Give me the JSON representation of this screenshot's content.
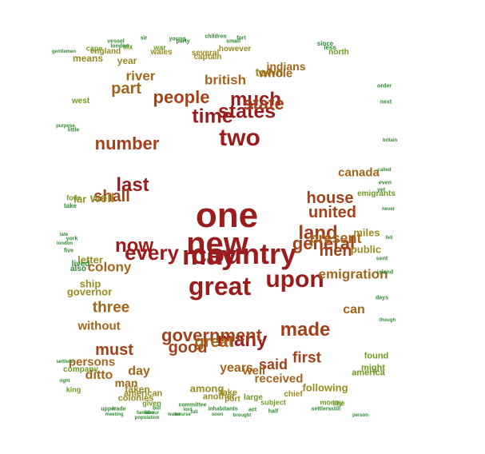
{
  "colors": {
    "c1": "#9b1c1c",
    "c2": "#a3421a",
    "c3": "#a5641c",
    "c4": "#9a8a22",
    "c5": "#6e9a22",
    "c6": "#2e8b2e"
  },
  "words": [
    {
      "text": "one",
      "color": "c1"
    },
    {
      "text": "new",
      "color": "c1"
    },
    {
      "text": "country",
      "color": "c1"
    },
    {
      "text": "may",
      "color": "c1"
    },
    {
      "text": "great",
      "color": "c1"
    },
    {
      "text": "upon",
      "color": "c1"
    },
    {
      "text": "two",
      "color": "c1"
    },
    {
      "text": "time",
      "color": "c1"
    },
    {
      "text": "states",
      "color": "c1"
    },
    {
      "text": "much",
      "color": "c1"
    },
    {
      "text": "state",
      "color": "c2"
    },
    {
      "text": "every",
      "color": "c1"
    },
    {
      "text": "now",
      "color": "c1"
    },
    {
      "text": "last",
      "color": "c1"
    },
    {
      "text": "made",
      "color": "c2"
    },
    {
      "text": "many",
      "color": "c1"
    },
    {
      "text": "government",
      "color": "c2"
    },
    {
      "text": "good",
      "color": "c2"
    },
    {
      "text": "great",
      "color": "c3"
    },
    {
      "text": "land",
      "color": "c2"
    },
    {
      "text": "general",
      "color": "c2"
    },
    {
      "text": "present",
      "color": "c3"
    },
    {
      "text": "men",
      "color": "c2"
    },
    {
      "text": "united",
      "color": "c2"
    },
    {
      "text": "house",
      "color": "c2"
    },
    {
      "text": "emigration",
      "color": "c3"
    },
    {
      "text": "number",
      "color": "c2"
    },
    {
      "text": "people",
      "color": "c2"
    },
    {
      "text": "part",
      "color": "c3"
    },
    {
      "text": "river",
      "color": "c3"
    },
    {
      "text": "british",
      "color": "c3"
    },
    {
      "text": "town",
      "color": "c4"
    },
    {
      "text": "whole",
      "color": "c3"
    },
    {
      "text": "indians",
      "color": "c3"
    },
    {
      "text": "shall",
      "color": "c2"
    },
    {
      "text": "far",
      "color": "c4"
    },
    {
      "text": "well",
      "color": "c4"
    },
    {
      "text": "colony",
      "color": "c3"
    },
    {
      "text": "letter",
      "color": "c4"
    },
    {
      "text": "three",
      "color": "c3"
    },
    {
      "text": "without",
      "color": "c3"
    },
    {
      "text": "must",
      "color": "c2"
    },
    {
      "text": "persons",
      "color": "c3"
    },
    {
      "text": "ditto",
      "color": "c3"
    },
    {
      "text": "day",
      "color": "c3"
    },
    {
      "text": "man",
      "color": "c3"
    },
    {
      "text": "first",
      "color": "c2"
    },
    {
      "text": "said",
      "color": "c2"
    },
    {
      "text": "years",
      "color": "c3"
    },
    {
      "text": "well",
      "color": "c3"
    },
    {
      "text": "received",
      "color": "c3"
    },
    {
      "text": "following",
      "color": "c4"
    },
    {
      "text": "can",
      "color": "c3"
    },
    {
      "text": "canada",
      "color": "c3"
    },
    {
      "text": "miles",
      "color": "c4"
    },
    {
      "text": "public",
      "color": "c4"
    },
    {
      "text": "governor",
      "color": "c4"
    },
    {
      "text": "ship",
      "color": "c4"
    },
    {
      "text": "among",
      "color": "c4"
    },
    {
      "text": "found",
      "color": "c5"
    },
    {
      "text": "might",
      "color": "c5"
    },
    {
      "text": "america",
      "color": "c5"
    },
    {
      "text": "emigrants",
      "color": "c5"
    },
    {
      "text": "year",
      "color": "c4"
    },
    {
      "text": "means",
      "color": "c4"
    },
    {
      "text": "west",
      "color": "c5"
    },
    {
      "text": "north",
      "color": "c5"
    },
    {
      "text": "england",
      "color": "c4"
    },
    {
      "text": "wales",
      "color": "c4"
    },
    {
      "text": "several",
      "color": "c4"
    },
    {
      "text": "captain",
      "color": "c4"
    },
    {
      "text": "however",
      "color": "c4"
    },
    {
      "text": "taken",
      "color": "c4"
    },
    {
      "text": "american",
      "color": "c4"
    },
    {
      "text": "colonies",
      "color": "c4"
    },
    {
      "text": "company",
      "color": "c5"
    },
    {
      "text": "king",
      "color": "c5"
    },
    {
      "text": "take",
      "color": "c4"
    },
    {
      "text": "another",
      "color": "c4"
    },
    {
      "text": "port",
      "color": "c4"
    },
    {
      "text": "large",
      "color": "c5"
    },
    {
      "text": "chief",
      "color": "c4"
    },
    {
      "text": "subject",
      "color": "c5"
    },
    {
      "text": "money",
      "color": "c5"
    },
    {
      "text": "like",
      "color": "c5"
    },
    {
      "text": "given",
      "color": "c5"
    },
    {
      "text": "cape",
      "color": "c5"
    },
    {
      "text": "six",
      "color": "c5"
    },
    {
      "text": "vessel",
      "color": "c6"
    },
    {
      "text": "london",
      "color": "c6"
    },
    {
      "text": "sir",
      "color": "c6"
    },
    {
      "text": "war",
      "color": "c5"
    },
    {
      "text": "young",
      "color": "c6"
    },
    {
      "text": "party",
      "color": "c6"
    },
    {
      "text": "children",
      "color": "c6"
    },
    {
      "text": "small",
      "color": "c6"
    },
    {
      "text": "fort",
      "color": "c6"
    },
    {
      "text": "since",
      "color": "c6"
    },
    {
      "text": "less",
      "color": "c6"
    },
    {
      "text": "gentlemen",
      "color": "c6"
    },
    {
      "text": "order",
      "color": "c6"
    },
    {
      "text": "next",
      "color": "c6"
    },
    {
      "text": "britain",
      "color": "c6"
    },
    {
      "text": "purpose",
      "color": "c6"
    },
    {
      "text": "little",
      "color": "c6"
    },
    {
      "text": "called",
      "color": "c6"
    },
    {
      "text": "even",
      "color": "c6"
    },
    {
      "text": "yet",
      "color": "c6"
    },
    {
      "text": "never",
      "color": "c6"
    },
    {
      "text": "four",
      "color": "c5"
    },
    {
      "text": "take",
      "color": "c6"
    },
    {
      "text": "late",
      "color": "c6"
    },
    {
      "text": "york",
      "color": "c6"
    },
    {
      "text": "london",
      "color": "c6"
    },
    {
      "text": "five",
      "color": "c6"
    },
    {
      "text": "lived",
      "color": "c6"
    },
    {
      "text": "also",
      "color": "c6"
    },
    {
      "text": "sent",
      "color": "c6"
    },
    {
      "text": "island",
      "color": "c6"
    },
    {
      "text": "days",
      "color": "c6"
    },
    {
      "text": "though",
      "color": "c6"
    },
    {
      "text": "settlers",
      "color": "c6"
    },
    {
      "text": "right",
      "color": "c6"
    },
    {
      "text": "upper",
      "color": "c6"
    },
    {
      "text": "trade",
      "color": "c6"
    },
    {
      "text": "meeting",
      "color": "c6"
    },
    {
      "text": "families",
      "color": "c6"
    },
    {
      "text": "bill",
      "color": "c6"
    },
    {
      "text": "labour",
      "color": "c6"
    },
    {
      "text": "population",
      "color": "c6"
    },
    {
      "text": "committee",
      "color": "c6"
    },
    {
      "text": "lord",
      "color": "c6"
    },
    {
      "text": "water",
      "color": "c6"
    },
    {
      "text": "course",
      "color": "c6"
    },
    {
      "text": "full",
      "color": "c6"
    },
    {
      "text": "inhabitants",
      "color": "c6"
    },
    {
      "text": "soon",
      "color": "c6"
    },
    {
      "text": "act",
      "color": "c6"
    },
    {
      "text": "brought",
      "color": "c6"
    },
    {
      "text": "half",
      "color": "c6"
    },
    {
      "text": "settlers",
      "color": "c6"
    },
    {
      "text": "still",
      "color": "c6"
    },
    {
      "text": "person",
      "color": "c6"
    },
    {
      "text": "fell",
      "color": "c6"
    }
  ]
}
